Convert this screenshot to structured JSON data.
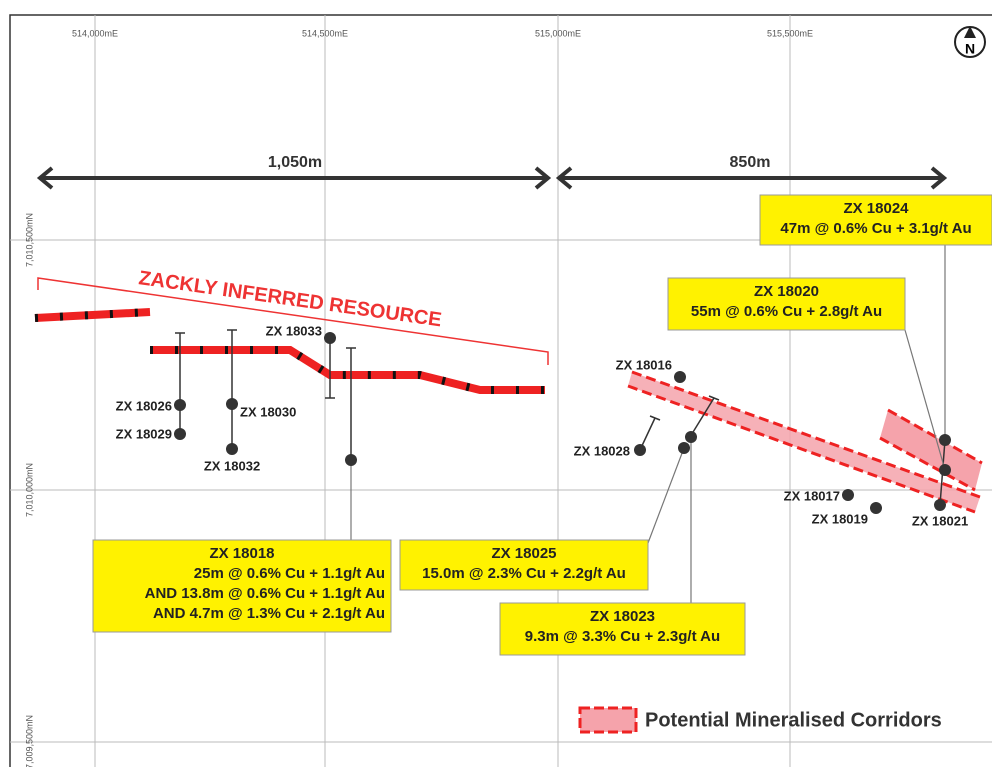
{
  "grid": {
    "eastings": [
      "514,000mE",
      "514,500mE",
      "515,000mE",
      "515,500mE"
    ],
    "northings": [
      "7,010,500mN",
      "7,010,000mN",
      "7,009,500mN"
    ]
  },
  "north_arrow": "N",
  "distances": [
    "1,050m",
    "850m"
  ],
  "resource_label": "ZACKLY INFERRED RESOURCE",
  "drillholes": [
    "ZX 18026",
    "ZX 18029",
    "ZX 18030",
    "ZX 18032",
    "ZX 18033",
    "ZX 18016",
    "ZX 18028",
    "ZX 18017",
    "ZX 18019",
    "ZX 18021"
  ],
  "callouts": [
    {
      "title": "ZX 18018",
      "lines": [
        "25m @ 0.6% Cu + 1.1g/t Au",
        "AND 13.8m @ 0.6% Cu + 1.1g/t Au",
        "AND 4.7m @ 1.3% Cu + 2.1g/t Au"
      ]
    },
    {
      "title": "ZX 18025",
      "lines": [
        "15.0m @ 2.3% Cu + 2.2g/t Au"
      ]
    },
    {
      "title": "ZX 18023",
      "lines": [
        "9.3m @ 3.3% Cu + 2.3g/t Au"
      ]
    },
    {
      "title": "ZX 18020",
      "lines": [
        "55m @ 0.6% Cu + 2.8g/t Au"
      ]
    },
    {
      "title": "ZX 18024",
      "lines": [
        "47m @ 0.6% Cu + 3.1g/t Au"
      ]
    }
  ],
  "legend": {
    "label": "Potential Mineralised Corridors"
  }
}
